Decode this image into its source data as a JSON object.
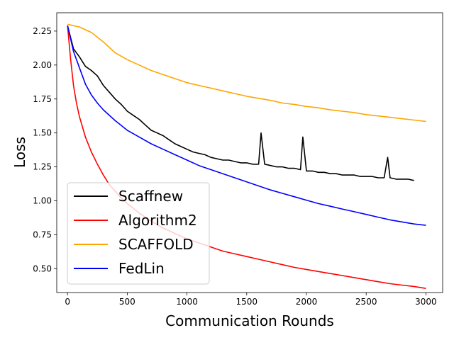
{
  "chart_data": {
    "type": "line",
    "title": "",
    "xlabel": "Communication Rounds",
    "ylabel": "Loss",
    "xlim": [
      -90,
      3140
    ],
    "ylim": [
      0.325,
      2.385
    ],
    "xticks": [
      0,
      500,
      1000,
      1500,
      2000,
      2500,
      3000
    ],
    "xtick_labels": [
      "0",
      "500",
      "1000",
      "1500",
      "2000",
      "2500",
      "3000"
    ],
    "yticks": [
      0.5,
      0.75,
      1.0,
      1.25,
      1.5,
      1.75,
      2.0,
      2.25
    ],
    "ytick_labels": [
      "0.50",
      "0.75",
      "1.00",
      "1.25",
      "1.50",
      "1.75",
      "2.00",
      "2.25"
    ],
    "grid": false,
    "legend_position": "lower-left",
    "series": [
      {
        "name": "Scaffnew",
        "color": "#000000",
        "x": [
          0,
          50,
          100,
          150,
          200,
          250,
          300,
          350,
          400,
          450,
          500,
          550,
          600,
          650,
          700,
          750,
          800,
          850,
          900,
          950,
          1000,
          1050,
          1100,
          1150,
          1200,
          1250,
          1300,
          1350,
          1400,
          1450,
          1500,
          1550,
          1600,
          1620,
          1650,
          1700,
          1750,
          1800,
          1850,
          1900,
          1950,
          1970,
          2000,
          2050,
          2100,
          2150,
          2200,
          2250,
          2300,
          2350,
          2400,
          2450,
          2500,
          2550,
          2600,
          2650,
          2680,
          2700,
          2750,
          2800,
          2850,
          2900
        ],
        "y": [
          2.29,
          2.12,
          2.06,
          1.99,
          1.96,
          1.92,
          1.85,
          1.8,
          1.75,
          1.71,
          1.66,
          1.63,
          1.6,
          1.56,
          1.52,
          1.5,
          1.48,
          1.45,
          1.42,
          1.4,
          1.38,
          1.36,
          1.35,
          1.34,
          1.32,
          1.31,
          1.3,
          1.3,
          1.29,
          1.28,
          1.28,
          1.27,
          1.27,
          1.5,
          1.27,
          1.26,
          1.25,
          1.25,
          1.24,
          1.24,
          1.23,
          1.47,
          1.22,
          1.22,
          1.21,
          1.21,
          1.2,
          1.2,
          1.19,
          1.19,
          1.19,
          1.18,
          1.18,
          1.18,
          1.17,
          1.17,
          1.32,
          1.17,
          1.16,
          1.16,
          1.16,
          1.15
        ]
      },
      {
        "name": "Algorithm2",
        "color": "#ff0000",
        "x": [
          0,
          25,
          50,
          75,
          100,
          150,
          200,
          250,
          300,
          350,
          400,
          450,
          500,
          600,
          700,
          800,
          900,
          1000,
          1100,
          1200,
          1300,
          1400,
          1500,
          1600,
          1700,
          1800,
          1900,
          2000,
          2100,
          2200,
          2300,
          2400,
          2500,
          2600,
          2700,
          2800,
          2900,
          3000
        ],
        "y": [
          2.29,
          2.05,
          1.85,
          1.72,
          1.62,
          1.47,
          1.36,
          1.27,
          1.19,
          1.12,
          1.07,
          1.02,
          0.98,
          0.91,
          0.85,
          0.8,
          0.76,
          0.72,
          0.69,
          0.66,
          0.63,
          0.61,
          0.59,
          0.57,
          0.55,
          0.53,
          0.51,
          0.495,
          0.48,
          0.465,
          0.45,
          0.435,
          0.42,
          0.405,
          0.39,
          0.38,
          0.37,
          0.355
        ]
      },
      {
        "name": "SCAFFOLD",
        "color": "#ffa500",
        "x": [
          0,
          100,
          200,
          300,
          350,
          400,
          500,
          600,
          700,
          800,
          900,
          1000,
          1100,
          1200,
          1300,
          1400,
          1500,
          1600,
          1700,
          1800,
          1900,
          2000,
          2100,
          2200,
          2300,
          2400,
          2500,
          2600,
          2700,
          2800,
          2900,
          3000
        ],
        "y": [
          2.3,
          2.28,
          2.24,
          2.17,
          2.13,
          2.09,
          2.04,
          2.0,
          1.96,
          1.93,
          1.9,
          1.87,
          1.85,
          1.83,
          1.81,
          1.79,
          1.77,
          1.755,
          1.74,
          1.72,
          1.71,
          1.695,
          1.685,
          1.67,
          1.66,
          1.65,
          1.635,
          1.625,
          1.615,
          1.605,
          1.595,
          1.585
        ]
      },
      {
        "name": "FedLin",
        "color": "#0000ff",
        "x": [
          0,
          50,
          100,
          150,
          200,
          250,
          300,
          400,
          500,
          600,
          700,
          800,
          900,
          1000,
          1100,
          1200,
          1300,
          1400,
          1500,
          1600,
          1700,
          1800,
          1900,
          2000,
          2100,
          2200,
          2300,
          2400,
          2500,
          2600,
          2700,
          2800,
          2900,
          3000
        ],
        "y": [
          2.29,
          2.1,
          1.98,
          1.86,
          1.78,
          1.72,
          1.67,
          1.59,
          1.52,
          1.47,
          1.42,
          1.38,
          1.34,
          1.3,
          1.26,
          1.23,
          1.2,
          1.17,
          1.14,
          1.11,
          1.08,
          1.055,
          1.03,
          1.005,
          0.98,
          0.96,
          0.94,
          0.92,
          0.9,
          0.88,
          0.86,
          0.845,
          0.83,
          0.82
        ]
      }
    ]
  }
}
